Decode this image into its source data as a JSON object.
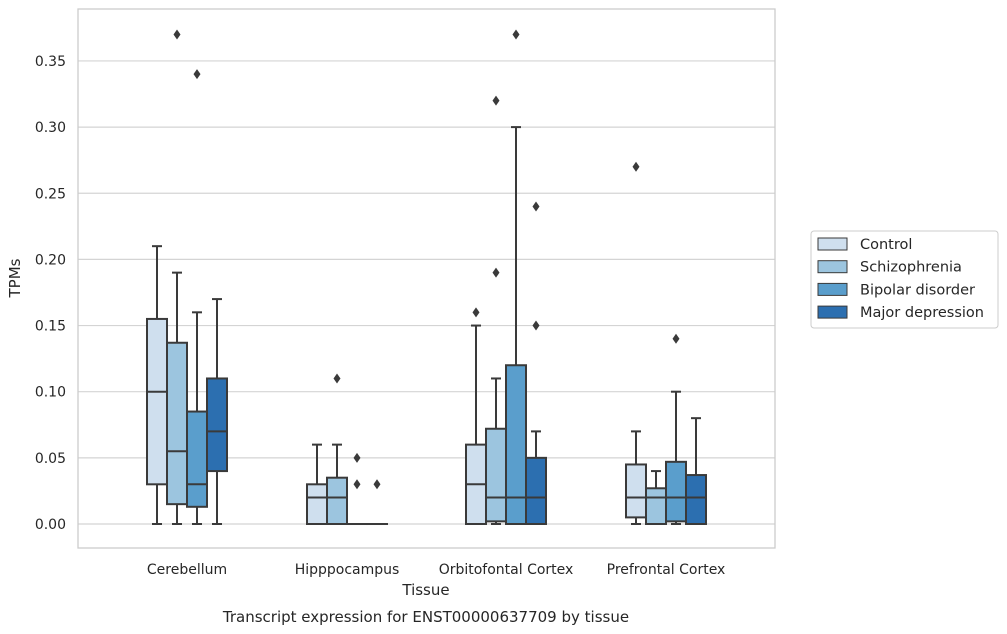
{
  "chart_data": {
    "type": "box",
    "xlabel": "Tissue",
    "ylabel": "TPMs",
    "caption": "Transcript expression for ENST00000637709 by tissue",
    "ylim": [
      -0.018,
      0.388
    ],
    "yticks": [
      "0.00",
      "0.05",
      "0.10",
      "0.15",
      "0.20",
      "0.25",
      "0.30",
      "0.35"
    ],
    "grid": "horizontal",
    "legend_position": "right",
    "categories": [
      "Cerebellum",
      "Hipppocampus",
      "Orbitofontal Cortex",
      "Prefrontal Cortex"
    ],
    "series": [
      {
        "name": "Control",
        "color": "#cfdfee",
        "boxes": [
          {
            "whisker_low": 0,
            "q1": 0.03,
            "median": 0.1,
            "q3": 0.155,
            "whisker_high": 0.21,
            "outliers": []
          },
          {
            "whisker_low": 0,
            "q1": 0,
            "median": 0.02,
            "q3": 0.03,
            "whisker_high": 0.06,
            "outliers": []
          },
          {
            "whisker_low": 0,
            "q1": 0,
            "median": 0.03,
            "q3": 0.06,
            "whisker_high": 0.15,
            "outliers": [
              0.16
            ]
          },
          {
            "whisker_low": 0,
            "q1": 0.005,
            "median": 0.02,
            "q3": 0.045,
            "whisker_high": 0.07,
            "outliers": [
              0.27
            ]
          }
        ]
      },
      {
        "name": "Schizophrenia",
        "color": "#9cc5df",
        "boxes": [
          {
            "whisker_low": 0,
            "q1": 0.015,
            "median": 0.055,
            "q3": 0.137,
            "whisker_high": 0.19,
            "outliers": [
              0.37
            ]
          },
          {
            "whisker_low": 0,
            "q1": 0,
            "median": 0.02,
            "q3": 0.035,
            "whisker_high": 0.06,
            "outliers": [
              0.11
            ]
          },
          {
            "whisker_low": 0,
            "q1": 0.002,
            "median": 0.02,
            "q3": 0.072,
            "whisker_high": 0.11,
            "outliers": [
              0.19,
              0.32
            ]
          },
          {
            "whisker_low": 0,
            "q1": 0,
            "median": 0.02,
            "q3": 0.027,
            "whisker_high": 0.04,
            "outliers": []
          }
        ]
      },
      {
        "name": "Bipolar disorder",
        "color": "#5a9ecc",
        "boxes": [
          {
            "whisker_low": 0,
            "q1": 0.013,
            "median": 0.03,
            "q3": 0.085,
            "whisker_high": 0.16,
            "outliers": [
              0.34
            ]
          },
          {
            "whisker_low": 0,
            "q1": 0,
            "median": 0,
            "q3": 0,
            "whisker_high": 0,
            "outliers": [
              0.03,
              0.05
            ]
          },
          {
            "whisker_low": 0,
            "q1": 0,
            "median": 0.02,
            "q3": 0.12,
            "whisker_high": 0.3,
            "outliers": [
              0.37
            ]
          },
          {
            "whisker_low": 0,
            "q1": 0.002,
            "median": 0.02,
            "q3": 0.047,
            "whisker_high": 0.1,
            "outliers": [
              0.14
            ]
          }
        ]
      },
      {
        "name": "Major depression",
        "color": "#2c6fb0",
        "boxes": [
          {
            "whisker_low": 0,
            "q1": 0.04,
            "median": 0.07,
            "q3": 0.11,
            "whisker_high": 0.17,
            "outliers": []
          },
          {
            "whisker_low": 0,
            "q1": 0,
            "median": 0,
            "q3": 0,
            "whisker_high": 0,
            "outliers": [
              0.03
            ]
          },
          {
            "whisker_low": 0,
            "q1": 0,
            "median": 0.02,
            "q3": 0.05,
            "whisker_high": 0.07,
            "outliers": [
              0.15,
              0.24
            ]
          },
          {
            "whisker_low": 0,
            "q1": 0,
            "median": 0.02,
            "q3": 0.037,
            "whisker_high": 0.08,
            "outliers": []
          }
        ]
      }
    ]
  }
}
